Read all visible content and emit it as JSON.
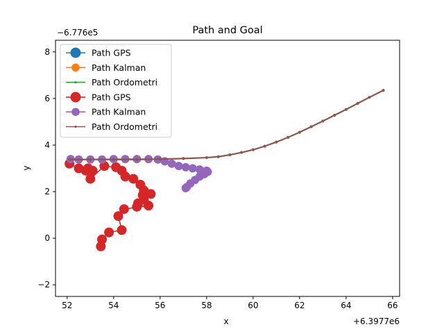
{
  "chart_data": {
    "type": "line",
    "title": "Path and Goal",
    "xlabel": "x",
    "ylabel": "y",
    "x_offset_label": "+6.3977e6",
    "y_offset_label": "−6.776e5",
    "xlim": [
      51.5,
      66.3
    ],
    "ylim": [
      -2.5,
      8.5
    ],
    "x_ticks": [
      52,
      54,
      56,
      58,
      60,
      62,
      64,
      66
    ],
    "y_ticks": [
      -2,
      0,
      2,
      4,
      6,
      8
    ],
    "x_tick_labels": [
      "52",
      "54",
      "56",
      "58",
      "60",
      "62",
      "64",
      "66"
    ],
    "y_tick_labels": [
      "−2",
      "0",
      "2",
      "4",
      "6",
      "8"
    ],
    "grid": false,
    "legend_position": "top-left",
    "series": [
      {
        "name": "Path GPS",
        "color": "#1f77b4",
        "marker": "big",
        "points": []
      },
      {
        "name": "Path Kalman",
        "color": "#ff7f0e",
        "marker": "medium",
        "points": []
      },
      {
        "name": "Path Ordometri",
        "color": "#2ca02c",
        "marker": "small",
        "points": []
      },
      {
        "name": "Path GPS",
        "color": "#d62728",
        "marker": "big",
        "points": [
          [
            52.1,
            3.2
          ],
          [
            52.5,
            3.0
          ],
          [
            52.9,
            3.0
          ],
          [
            52.8,
            2.9
          ],
          [
            53.1,
            2.9
          ],
          [
            53.0,
            2.55
          ],
          [
            53.6,
            3.1
          ],
          [
            54.1,
            3.05
          ],
          [
            54.35,
            2.9
          ],
          [
            54.5,
            2.65
          ],
          [
            54.85,
            2.55
          ],
          [
            55.15,
            2.3
          ],
          [
            55.3,
            2.05
          ],
          [
            55.25,
            1.85
          ],
          [
            55.6,
            1.9
          ],
          [
            55.3,
            1.65
          ],
          [
            55.05,
            1.5
          ],
          [
            55.0,
            1.35
          ],
          [
            55.5,
            1.4
          ],
          [
            54.45,
            1.25
          ],
          [
            54.2,
            0.95
          ],
          [
            54.35,
            0.35
          ],
          [
            53.8,
            0.25
          ],
          [
            53.5,
            -0.05
          ],
          [
            53.45,
            -0.35
          ]
        ]
      },
      {
        "name": "Path Kalman",
        "color": "#9467bd",
        "marker": "medium",
        "points": [
          [
            52.15,
            3.4
          ],
          [
            52.5,
            3.38
          ],
          [
            53.0,
            3.38
          ],
          [
            53.5,
            3.38
          ],
          [
            54.0,
            3.4
          ],
          [
            54.5,
            3.4
          ],
          [
            55.0,
            3.4
          ],
          [
            55.5,
            3.4
          ],
          [
            55.9,
            3.38
          ],
          [
            56.2,
            3.3
          ],
          [
            56.5,
            3.2
          ],
          [
            56.8,
            3.1
          ],
          [
            57.1,
            3.05
          ],
          [
            57.4,
            3.0
          ],
          [
            57.7,
            2.95
          ],
          [
            58.0,
            2.9
          ],
          [
            58.05,
            2.85
          ],
          [
            57.9,
            2.75
          ],
          [
            57.7,
            2.65
          ],
          [
            57.5,
            2.5
          ],
          [
            57.3,
            2.35
          ],
          [
            57.15,
            2.2
          ],
          [
            57.1,
            2.15
          ]
        ]
      },
      {
        "name": "Path Ordometri",
        "color": "#8c564b",
        "marker": "small",
        "points": [
          [
            52.1,
            3.38
          ],
          [
            53.0,
            3.38
          ],
          [
            54.0,
            3.38
          ],
          [
            55.0,
            3.38
          ],
          [
            56.0,
            3.4
          ],
          [
            57.0,
            3.42
          ],
          [
            58.0,
            3.46
          ],
          [
            58.5,
            3.5
          ],
          [
            59.0,
            3.58
          ],
          [
            59.5,
            3.68
          ],
          [
            60.0,
            3.8
          ],
          [
            60.5,
            3.95
          ],
          [
            61.0,
            4.13
          ],
          [
            61.5,
            4.33
          ],
          [
            62.0,
            4.55
          ],
          [
            62.5,
            4.79
          ],
          [
            63.0,
            5.03
          ],
          [
            63.5,
            5.28
          ],
          [
            64.0,
            5.53
          ],
          [
            64.5,
            5.79
          ],
          [
            65.0,
            6.05
          ],
          [
            65.6,
            6.35
          ]
        ]
      }
    ]
  }
}
